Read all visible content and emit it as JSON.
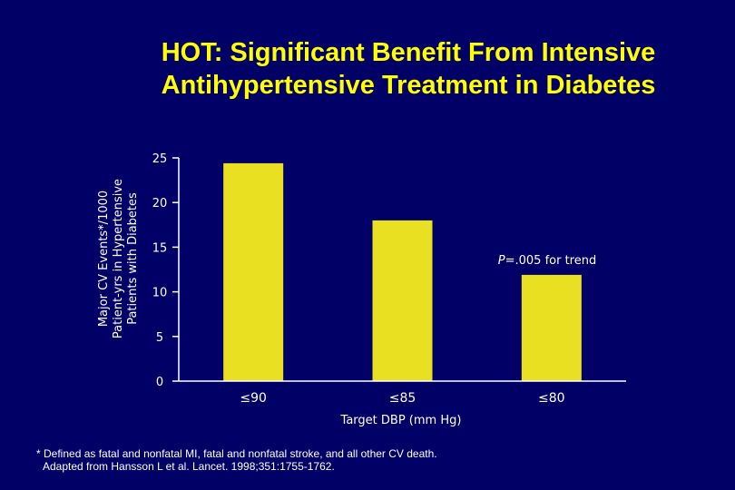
{
  "slide": {
    "title_line1": "HOT: Significant Benefit From Intensive",
    "title_line2": "Antihypertensive Treatment in Diabetes",
    "footnote_line1": "* Defined as fatal and nonfatal MI, fatal and nonfatal stroke, and all other CV death.",
    "footnote_line2": "Adapted from Hansson L et al. Lancet. 1998;351:1755-1762."
  },
  "colors": {
    "background": "#000066",
    "title": "#ffff00",
    "bar": "#e8e020",
    "axis": "#ffffff",
    "text": "#ffffff"
  },
  "chart_data": {
    "type": "bar",
    "categories": [
      "≤90",
      "≤85",
      "≤80"
    ],
    "values": [
      24.4,
      18.0,
      11.9
    ],
    "xlabel": "Target DBP (mm Hg)",
    "ylabel_lines": [
      "Major CV Events*/1000",
      "Patient-yrs in Hypertensive",
      "Patients with Diabetes"
    ],
    "ylim": [
      0,
      25
    ],
    "yticks": [
      0,
      5,
      10,
      15,
      20,
      25
    ],
    "annotation": "P=.005 for trend",
    "grid": false,
    "legend": "none"
  }
}
